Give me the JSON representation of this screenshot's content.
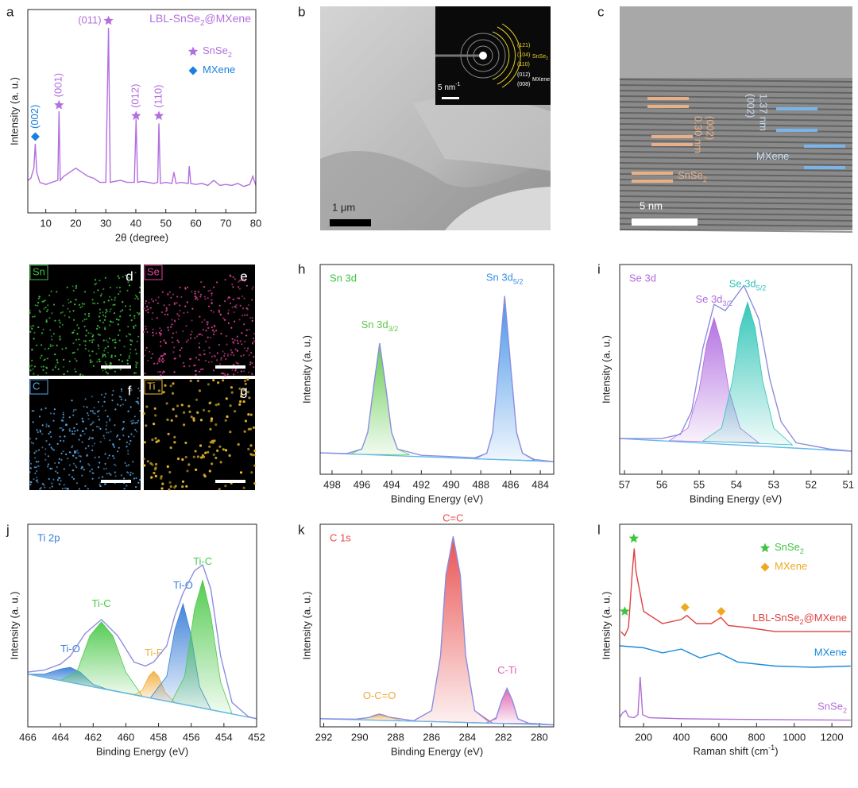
{
  "chart_data": [
    {
      "type": "line",
      "panel": "a",
      "title": [
        "LBL-SnSe",
        "2",
        "@MXene"
      ],
      "title_color": "#b36fe0",
      "xlabel": "2θ (degree)",
      "ylabel": "Intensity (a. u.)",
      "xlim": [
        4,
        80
      ],
      "xticks": [
        10,
        20,
        30,
        40,
        50,
        60,
        70,
        80
      ],
      "ylim": [
        0,
        100
      ],
      "series": [
        {
          "color": "#b36fe0",
          "x": [
            4,
            5,
            6,
            6.5,
            7,
            8,
            10,
            12,
            14,
            14.4,
            14.8,
            16,
            18,
            20,
            22,
            24,
            26,
            28,
            30,
            30.9,
            31.5,
            33,
            35,
            37,
            39.5,
            40.1,
            40.6,
            42,
            44,
            46,
            47.3,
            47.7,
            48.2,
            50,
            52,
            52.7,
            53.4,
            55,
            57.5,
            57.8,
            58.3,
            60,
            62,
            64,
            66,
            68,
            70,
            72,
            74,
            76,
            78,
            79,
            80
          ],
          "values": [
            16,
            17,
            22,
            34,
            20,
            15,
            14,
            15,
            16,
            50,
            16,
            18,
            20,
            22,
            20,
            18,
            17,
            15,
            15,
            91,
            15,
            15.5,
            16,
            15,
            15,
            46,
            15,
            15.5,
            15,
            14.5,
            15,
            44,
            14.5,
            15,
            14.5,
            20,
            14.5,
            15,
            14.5,
            23,
            14.5,
            14,
            14.5,
            13.5,
            16,
            13.5,
            14,
            13.5,
            14.5,
            13,
            14,
            18,
            13.5
          ]
        }
      ],
      "markers": [
        {
          "x": 6.5,
          "y": 37.5,
          "symbol": "diamond",
          "color": "#1a7fe0",
          "label": "(002)",
          "label_orientation": "vertical"
        },
        {
          "x": 14.4,
          "y": 53,
          "symbol": "star",
          "color": "#b36fe0",
          "label": "(001)",
          "label_orientation": "vertical"
        },
        {
          "x": 30.9,
          "y": 94.5,
          "symbol": "star",
          "color": "#b36fe0",
          "label": "(011)",
          "label_orientation": "horizontal"
        },
        {
          "x": 40.1,
          "y": 47.7,
          "symbol": "star",
          "color": "#b36fe0",
          "label": "(012)",
          "label_orientation": "vertical"
        },
        {
          "x": 47.7,
          "y": 47.7,
          "symbol": "star",
          "color": "#b36fe0",
          "label": "(110)",
          "label_orientation": "vertical"
        }
      ],
      "legend": [
        {
          "symbol": "star",
          "color": "#b36fe0",
          "label": [
            "SnSe",
            "2"
          ]
        },
        {
          "symbol": "diamond",
          "color": "#1a7fe0",
          "label": [
            "MXene"
          ]
        }
      ]
    },
    {
      "type": "area",
      "panel": "h",
      "title": "Sn 3d",
      "title_color": "#3ec43e",
      "xlabel": "Binding Energy (eV)",
      "ylabel": "Intensity (a. u.)",
      "xlim": [
        498.8,
        483.1
      ],
      "xticks": [
        498,
        496,
        494,
        492,
        490,
        488,
        486,
        484
      ],
      "ylim": [
        0,
        100
      ],
      "series": [
        {
          "label": [
            "Sn 3d",
            "3/2"
          ],
          "color": "#5ec94a",
          "fill": true,
          "x": [
            496.8,
            496,
            495.6,
            495.2,
            494.8,
            494.4,
            494,
            493.6,
            492.8
          ],
          "values": [
            9.5,
            12,
            20,
            42,
            62.5,
            42,
            20,
            12,
            9.3
          ]
        },
        {
          "label": [
            "Sn 3d",
            "5/2"
          ],
          "color": "#3a8ee6",
          "fill": true,
          "x": [
            488.4,
            487.6,
            487.2,
            486.8,
            486.4,
            486,
            485.6,
            485.2,
            484.4
          ],
          "values": [
            7.3,
            10,
            20,
            52,
            85,
            52,
            20,
            10,
            6.6
          ]
        },
        {
          "color": "#66b8ea",
          "x": [
            498.8,
            483.1
          ],
          "values": [
            10.2,
            6
          ]
        },
        {
          "color": "#8c8ee0",
          "x": [
            498.8,
            497,
            496,
            495.6,
            495.2,
            494.8,
            494.4,
            494,
            493.6,
            492,
            490,
            488.4,
            487.6,
            487.2,
            486.8,
            486.4,
            486,
            485.6,
            485.2,
            484.4,
            483.1
          ],
          "values": [
            10.2,
            9.9,
            12,
            20,
            42,
            62.5,
            42,
            20,
            12,
            9,
            8.4,
            7.8,
            10,
            20,
            52,
            85,
            52,
            20,
            10,
            7,
            6
          ]
        }
      ]
    },
    {
      "type": "area",
      "panel": "i",
      "title": "Se 3d",
      "title_color": "#b06be0",
      "xlabel": "Binding Energy (eV)",
      "ylabel": "Intensity (a. u.)",
      "xlim": [
        57.13,
        50.91
      ],
      "xticks": [
        57,
        56,
        55,
        54,
        53,
        52,
        51
      ],
      "ylim": [
        0,
        100
      ],
      "series": [
        {
          "label": [
            "Se 3d",
            "3/2"
          ],
          "color": "#b06be0",
          "fill": true,
          "x": [
            55.8,
            55.3,
            55,
            54.8,
            54.6,
            54.4,
            54.2,
            53.9,
            53.4
          ],
          "values": [
            16,
            22,
            40,
            62,
            74.6,
            62,
            40,
            22,
            15
          ]
        },
        {
          "label": [
            "Se 3d",
            "5/2"
          ],
          "color": "#2ec4b6",
          "fill": true,
          "x": [
            54.9,
            54.4,
            54.1,
            53.9,
            53.7,
            53.5,
            53.3,
            53,
            52.5
          ],
          "values": [
            15.8,
            22,
            45,
            70,
            82,
            70,
            45,
            22,
            14
          ]
        },
        {
          "color": "#66b8ea",
          "x": [
            57.13,
            50.91
          ],
          "values": [
            17,
            11
          ]
        },
        {
          "color": "#8c8ee0",
          "x": [
            57.13,
            56,
            55.5,
            55.2,
            54.9,
            54.6,
            54.3,
            53.8,
            53.4,
            53.1,
            52.8,
            52.4,
            51.5,
            50.91
          ],
          "values": [
            17,
            17,
            19,
            30,
            60,
            81,
            78,
            90,
            74,
            45,
            25,
            15,
            12,
            11
          ]
        }
      ]
    },
    {
      "type": "area",
      "panel": "j",
      "title": "Ti 2p",
      "title_color": "#3a7fd8",
      "xlabel": "Binding Energy (eV)",
      "ylabel": "Intensity (a. u.)",
      "xlim": [
        466,
        452
      ],
      "xticks": [
        466,
        464,
        462,
        460,
        458,
        456,
        454,
        452
      ],
      "ylim": [
        0,
        100
      ],
      "series": [
        {
          "label": [
            "Ti-O"
          ],
          "color": "#3a7fd8",
          "fill": true,
          "x": [
            466,
            465,
            464,
            463.4,
            462.8,
            462,
            461
          ],
          "values": [
            26,
            26,
            28.5,
            29.4,
            27,
            21,
            18.1
          ]
        },
        {
          "label": [
            "Ti-C"
          ],
          "color": "#4cc94a",
          "fill": true,
          "x": [
            464,
            463,
            462.2,
            461.5,
            460.8,
            460,
            459
          ],
          "values": [
            23,
            27,
            45,
            51.8,
            45,
            27,
            15.2
          ]
        },
        {
          "label": [
            "Ti-F"
          ],
          "color": "#f0b040",
          "fill": true,
          "x": [
            459.5,
            459,
            458.6,
            458.3,
            458,
            457.6,
            457
          ],
          "values": [
            15.8,
            18,
            25,
            27.5,
            25,
            17,
            12
          ]
        },
        {
          "label": [
            "Ti-O"
          ],
          "color": "#3a7fd8",
          "fill": true,
          "x": [
            458.5,
            457.5,
            457,
            456.5,
            456,
            455.5,
            454.8
          ],
          "values": [
            14.3,
            25,
            48,
            60.8,
            45,
            20,
            8.5
          ]
        },
        {
          "label": [
            "Ti-C"
          ],
          "color": "#4cc94a",
          "fill": true,
          "x": [
            457.2,
            456.4,
            455.8,
            455.3,
            454.8,
            454.2,
            453.5
          ],
          "values": [
            12.3,
            25,
            58,
            72.5,
            55,
            22,
            6.5
          ]
        },
        {
          "color": "#66b8ea",
          "x": [
            466,
            452
          ],
          "values": [
            26,
            4
          ]
        },
        {
          "color": "#8c8ee0",
          "x": [
            466,
            465,
            464,
            463.4,
            462.5,
            461.5,
            460.5,
            459.5,
            458.8,
            458.3,
            457.5,
            457,
            456.5,
            455.8,
            455.3,
            454.8,
            454.2,
            453.5,
            452.5,
            452
          ],
          "values": [
            27,
            28,
            31,
            35,
            46,
            53,
            45,
            32,
            30,
            32,
            40,
            55,
            66,
            77,
            80,
            68,
            35,
            12,
            5,
            4
          ]
        }
      ]
    },
    {
      "type": "area",
      "panel": "k",
      "title": "C 1s",
      "title_color": "#e84a4a",
      "xlabel": "Binding Energy (eV)",
      "ylabel": "Intensity (a. u.)",
      "xlim": [
        292.2,
        279.2
      ],
      "xticks": [
        292,
        290,
        288,
        286,
        284,
        282,
        280
      ],
      "ylim": [
        0,
        100
      ],
      "series": [
        {
          "label": [
            "O-C=O"
          ],
          "color": "#f0a840",
          "fill": true,
          "x": [
            290.2,
            289.5,
            289.2,
            288.9,
            288.6,
            288.3,
            287.6
          ],
          "values": [
            3.7,
            4.5,
            5.8,
            6.3,
            5.8,
            4.5,
            3.0
          ]
        },
        {
          "label": [
            "C=C"
          ],
          "color": "#e84a4a",
          "fill": true,
          "x": [
            287,
            286,
            285.5,
            285.2,
            284.8,
            284.4,
            284.1,
            283.6,
            282.6
          ],
          "values": [
            2.9,
            8,
            35,
            75,
            94,
            75,
            35,
            8,
            1.9
          ]
        },
        {
          "label": [
            "C-Ti"
          ],
          "color": "#e060b0",
          "fill": true,
          "x": [
            283,
            282.4,
            282.1,
            281.8,
            281.5,
            281.2,
            280.6
          ],
          "values": [
            1.9,
            4,
            13,
            18.8,
            13,
            4,
            1.7
          ]
        },
        {
          "color": "#66b8ea",
          "x": [
            292.2,
            279.2
          ],
          "values": [
            4,
            1
          ]
        },
        {
          "color": "#8c8ee0",
          "x": [
            292.2,
            290.2,
            289.5,
            288.9,
            288.3,
            287,
            286,
            285.5,
            285.2,
            284.8,
            284.4,
            284.1,
            283.6,
            282.8,
            282.4,
            282.1,
            281.8,
            281.5,
            281.2,
            280.6,
            279.2
          ],
          "values": [
            4,
            3.8,
            4.6,
            6.3,
            4.7,
            3,
            8,
            35,
            75,
            94,
            75,
            35,
            8,
            2.5,
            4.5,
            13,
            19,
            13,
            4,
            1.8,
            1
          ]
        }
      ]
    },
    {
      "type": "line",
      "panel": "l",
      "xlabel": [
        "Raman shift (cm",
        "-1",
        ")"
      ],
      "ylabel": "Intensity (a. u.)",
      "xlim": [
        73,
        1305
      ],
      "xticks": [
        200,
        400,
        600,
        800,
        1000,
        1200
      ],
      "ylim": [
        0,
        100
      ],
      "series": [
        {
          "label": [
            "LBL-SnSe",
            "2",
            "@MXene"
          ],
          "color": "#e04040",
          "x": [
            80,
            100,
            120,
            140,
            150,
            160,
            200,
            300,
            400,
            430,
            480,
            560,
            610,
            650,
            750,
            900,
            1050,
            1300
          ],
          "values": [
            47,
            45,
            49,
            76.5,
            88,
            76.5,
            57,
            51,
            53,
            55,
            51,
            51,
            54,
            50,
            49,
            47,
            47,
            47
          ]
        },
        {
          "label": [
            "MXene"
          ],
          "color": "#1a8ad8",
          "x": [
            75,
            200,
            300,
            400,
            500,
            600,
            700,
            900,
            1100,
            1300
          ],
          "values": [
            40,
            39,
            36.5,
            38.4,
            34,
            36.5,
            32,
            30,
            29.4,
            30
          ]
        },
        {
          "label": [
            "SnSe",
            "2"
          ],
          "color": "#b070d8",
          "x": [
            75,
            90,
            105,
            120,
            150,
            170,
            182,
            195,
            230,
            400,
            700,
            1000,
            1300
          ],
          "values": [
            5,
            7,
            8,
            5,
            4.5,
            6,
            24.7,
            6,
            4.5,
            4,
            3.7,
            3.5,
            3.3
          ]
        }
      ],
      "markers": [
        {
          "x": 100,
          "y": 57,
          "symbol": "star",
          "color": "#3ec43e"
        },
        {
          "x": 148,
          "y": 93,
          "symbol": "star",
          "color": "#3ec43e"
        },
        {
          "x": 420,
          "y": 59,
          "symbol": "diamond",
          "color": "#f0a820"
        },
        {
          "x": 612,
          "y": 57,
          "symbol": "diamond",
          "color": "#f0a820"
        }
      ],
      "legend": [
        {
          "symbol": "star",
          "color": "#3ec43e",
          "label": [
            "SnSe",
            "2"
          ]
        },
        {
          "symbol": "diamond",
          "color": "#f0a820",
          "label": [
            "MXene"
          ]
        }
      ]
    }
  ],
  "images": [
    {
      "panel": "b",
      "scale": "1 μm",
      "inset_scale": [
        "5 nm",
        "-1"
      ],
      "rings": [
        "(121)",
        "(104)",
        "(110)",
        "(012)",
        "(008)"
      ],
      "ring_groups": [
        [
          "SnSe",
          "2"
        ],
        [
          "MXene"
        ]
      ]
    },
    {
      "panel": "c",
      "scale": "5 nm",
      "spacings": [
        {
          "d": "0.30 nm",
          "plane": "(002)",
          "phase": [
            "SnSe",
            "2"
          ]
        },
        {
          "d": "1.37 nm",
          "plane": "(002)",
          "phase": [
            "MXene"
          ]
        }
      ]
    },
    {
      "panel": "d",
      "element": "Sn",
      "color": "#3ec43e"
    },
    {
      "panel": "e",
      "element": "Se",
      "color": "#e0409a"
    },
    {
      "panel": "f",
      "element": "C",
      "color": "#5aa8e8"
    },
    {
      "panel": "g",
      "element": "Ti",
      "color": "#f0c030"
    }
  ]
}
